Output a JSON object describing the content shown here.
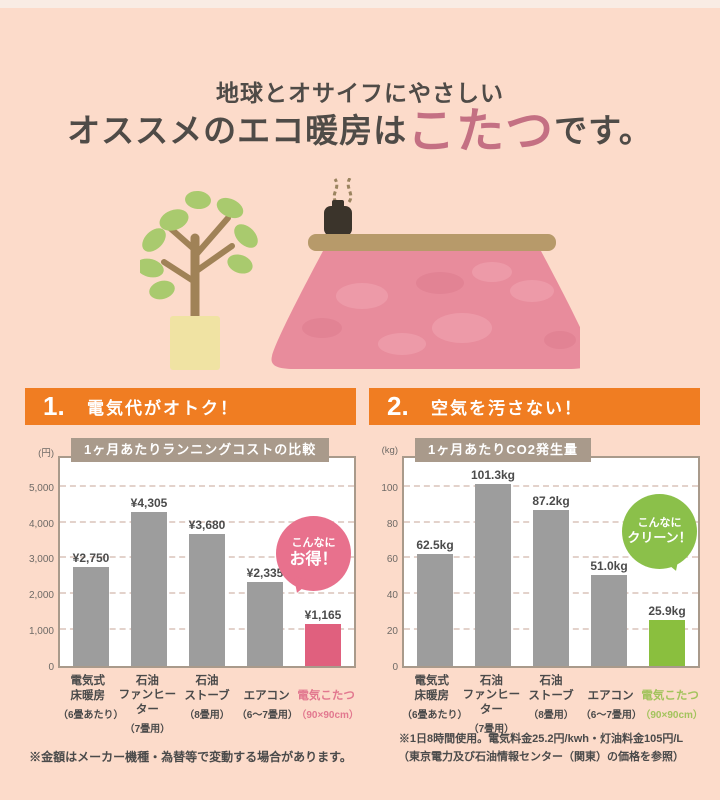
{
  "header": {
    "subtitle": "地球とオサイフにやさしい",
    "title_prefix": "オススメのエコ暖房は",
    "title_highlight": "こたつ",
    "title_suffix": "です。",
    "highlight_color": "#c47083"
  },
  "icons": [
    "plant-illustration",
    "kotatsu-illustration",
    "steam-icon",
    "teapot-icon"
  ],
  "sections": [
    {
      "number": "1.",
      "label": "電気代がオトク！"
    },
    {
      "number": "2.",
      "label": "空気を汚さない！"
    }
  ],
  "chart_data": [
    {
      "type": "bar",
      "title": "1ヶ月あたりランニングコストの比較",
      "unit": "(円)",
      "categories": [
        [
          "電気式",
          "床暖房"
        ],
        [
          "石油",
          "ファンヒーター"
        ],
        [
          "石油",
          "ストーブ"
        ],
        [
          "エアコン"
        ],
        [
          "電気こたつ"
        ]
      ],
      "category_notes": [
        "（6畳あたり）",
        "（7畳用）",
        "（8畳用）",
        "（6～7畳用）",
        "（90×90cm）"
      ],
      "values": [
        2750,
        4305,
        3680,
        2335,
        1165
      ],
      "value_labels": [
        "¥2,750",
        "¥4,305",
        "¥3,680",
        "¥2,335",
        "¥1,165"
      ],
      "yticks": [
        0,
        1000,
        2000,
        3000,
        4000,
        5000
      ],
      "ytick_labels": [
        "0",
        "1,000",
        "2,000",
        "3,000",
        "4,000",
        "5,000"
      ],
      "ylim": [
        0,
        5000
      ],
      "grid": true,
      "bar_color": "#9d9d9d",
      "highlight_index": 4,
      "highlight_color": "#e0607e",
      "highlight_label_color": "#e2788f",
      "bubble": {
        "lines": [
          "こんなに",
          "お得！"
        ],
        "color": "#e8718d"
      }
    },
    {
      "type": "bar",
      "title": "1ヶ月あたりCO2発生量",
      "unit": "(kg)",
      "categories": [
        [
          "電気式",
          "床暖房"
        ],
        [
          "石油",
          "ファンヒーター"
        ],
        [
          "石油",
          "ストーブ"
        ],
        [
          "エアコン"
        ],
        [
          "電気こたつ"
        ]
      ],
      "category_notes": [
        "（6畳あたり）",
        "（7畳用）",
        "（8畳用）",
        "（6～7畳用）",
        "（90×90cm）"
      ],
      "values": [
        62.5,
        101.3,
        87.2,
        51.0,
        25.9
      ],
      "value_labels": [
        "62.5kg",
        "101.3kg",
        "87.2kg",
        "51.0kg",
        "25.9kg"
      ],
      "yticks": [
        0,
        20,
        40,
        60,
        80,
        100
      ],
      "ytick_labels": [
        "0",
        "20",
        "40",
        "60",
        "80",
        "100"
      ],
      "ylim": [
        0,
        100
      ],
      "grid": true,
      "bar_color": "#9d9d9d",
      "highlight_index": 4,
      "highlight_color": "#8abf3e",
      "highlight_label_color": "#a2c35c",
      "bubble": {
        "lines": [
          "こんなに",
          "クリーン！"
        ],
        "color": "#8bc04a"
      }
    }
  ],
  "footnotes": {
    "left": "※金額はメーカー機種・為替等で変動する場合があります。",
    "right_line1": "※1日8時間使用。電気料金25.2円/kwh・灯油料金105円/L",
    "right_line2": "（東京電力及び石油情報センター（関東）の価格を参照）"
  }
}
